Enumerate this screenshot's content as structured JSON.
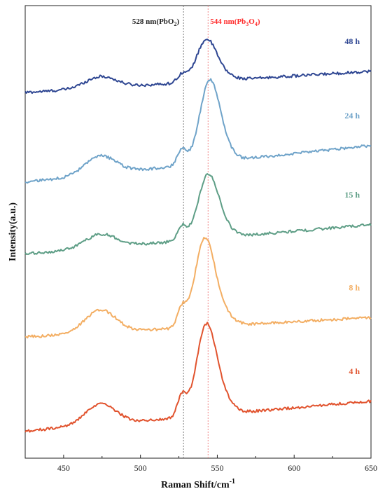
{
  "chart_data": {
    "type": "line",
    "xlabel": "Raman Shift/cm",
    "xlabel_sup": "-1",
    "ylabel": "Intensity(a.u.)",
    "xlim": [
      425,
      650
    ],
    "ylim": [
      0,
      1.0
    ],
    "xticks": [
      "450",
      "500",
      "550",
      "600",
      "650"
    ],
    "grid": false,
    "reference_lines": [
      {
        "x": 528,
        "label": "528 nm(PbO",
        "sub": "2",
        "tail": ")",
        "color": "#7a7a7a",
        "text_color": "#222222"
      },
      {
        "x": 544,
        "label": "544 nm(Pb",
        "sub": "3",
        "mid": "O",
        "sub2": "4",
        "tail": ")",
        "color": "#f08a8a",
        "text_color": "#ff2a2a"
      }
    ],
    "series": [
      {
        "label": "48 h",
        "color": "#2e4692",
        "offset": 0.808,
        "base_start": 0.0,
        "base_end": 0.047,
        "hump": 0.025,
        "peak_height": 0.092,
        "peak_center": 543,
        "shoulder": 0.018
      },
      {
        "label": "24 h",
        "color": "#6fa3c9",
        "offset": 0.61,
        "base_start": 0.0,
        "base_end": 0.081,
        "hump": 0.04,
        "peak_height": 0.178,
        "peak_center": 545,
        "shoulder": 0.035
      },
      {
        "label": "15 h",
        "color": "#5e9e86",
        "offset": 0.451,
        "base_start": 0.0,
        "base_end": 0.065,
        "hump": 0.03,
        "peak_height": 0.14,
        "peak_center": 544,
        "shoulder": 0.03
      },
      {
        "label": "8 h",
        "color": "#f3ae63",
        "offset": 0.268,
        "base_start": 0.0,
        "base_end": 0.043,
        "hump": 0.05,
        "peak_height": 0.195,
        "peak_center": 542,
        "shoulder": 0.04
      },
      {
        "label": "4 h",
        "color": "#e1532e",
        "offset": 0.06,
        "base_start": 0.0,
        "base_end": 0.066,
        "hump": 0.045,
        "peak_height": 0.2,
        "peak_center": 543,
        "shoulder": 0.045
      }
    ]
  }
}
